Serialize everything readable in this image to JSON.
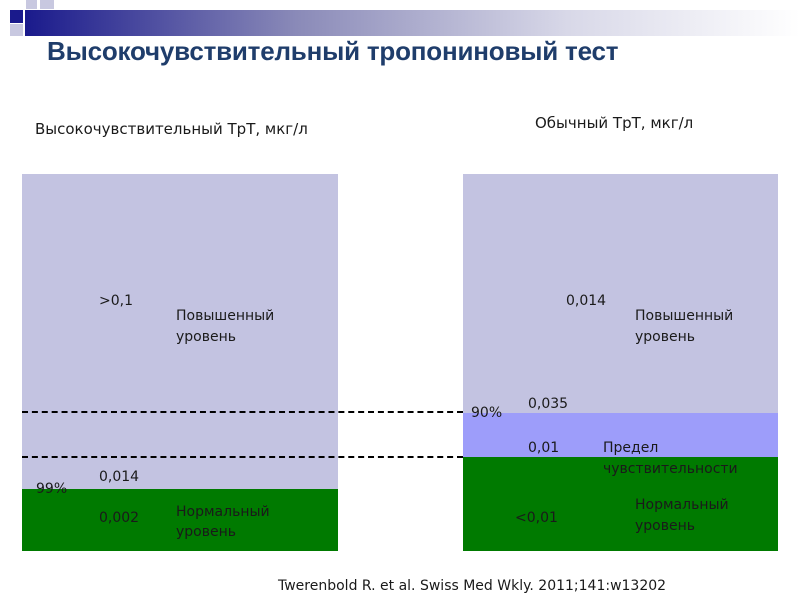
{
  "title": "Высокочувствительный тропониновый тест",
  "colors": {
    "elevated": "#c3c3e1",
    "detection_limit_band": "#9d9dfa",
    "normal": "#007a00",
    "title": "#1f3d6b",
    "accent": "#1a1a8c"
  },
  "left_panel": {
    "header": "Высокочувствительный TpT, мкг/л",
    "elevated_value": ">0,1",
    "elevated_label_1": "Повышенный",
    "elevated_label_2": "уровень",
    "cutoff_value": "0,014",
    "percentile": "99%",
    "normal_value": "0,002",
    "normal_label_1": "Нормальный",
    "normal_label_2": "уровень"
  },
  "right_panel": {
    "header": "Обычный TpT, мкг/л",
    "elevated_value": "0,014",
    "elevated_label_1": "Повышенный",
    "elevated_label_2": "уровень",
    "cutoff_value": "0,035",
    "percentile": "90%",
    "limit_value": "0,01",
    "limit_label_1": "Предел",
    "limit_label_2": "чувствительности",
    "normal_value": "<0,01",
    "normal_label_1": "Нормальный",
    "normal_label_2": "уровень"
  },
  "reference": "Twerenbold R. et al. Swiss Med Wkly. 2011;141:w13202"
}
